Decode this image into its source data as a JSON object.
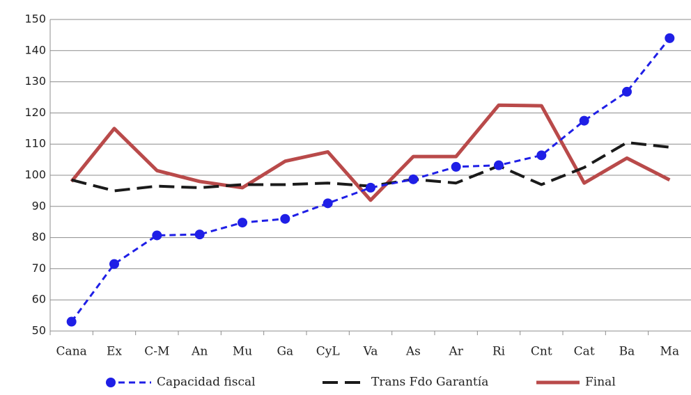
{
  "chart_data": {
    "type": "line",
    "categories": [
      "Cana",
      "Ex",
      "C-M",
      "An",
      "Mu",
      "Ga",
      "CyL",
      "Va",
      "As",
      "Ar",
      "Ri",
      "Cnt",
      "Cat",
      "Ba",
      "Ma"
    ],
    "series": [
      {
        "name": "Capacidad fiscal",
        "color": "#1f1fe6",
        "values": [
          53,
          71.5,
          80.7,
          81,
          84.8,
          86,
          91,
          96,
          98.7,
          102.7,
          103.2,
          106.4,
          117.5,
          126.8,
          144
        ]
      },
      {
        "name": "Trans Fdo Garantía",
        "color": "#1a1a1a",
        "values": [
          98.5,
          95,
          96.5,
          96,
          97,
          97,
          97.5,
          96.5,
          98.7,
          97.5,
          103,
          97,
          102.5,
          110.5,
          109
        ]
      },
      {
        "name": "Final",
        "color": "#b94a4a",
        "values": [
          98,
          115,
          101.5,
          98,
          96,
          104.5,
          107.5,
          92,
          106,
          106,
          122.5,
          122.3,
          97.5,
          105.5,
          98.5
        ]
      }
    ],
    "ylim": [
      50,
      150
    ],
    "yticks": [
      50,
      60,
      70,
      80,
      90,
      100,
      110,
      120,
      130,
      140,
      150
    ],
    "grid": true
  }
}
